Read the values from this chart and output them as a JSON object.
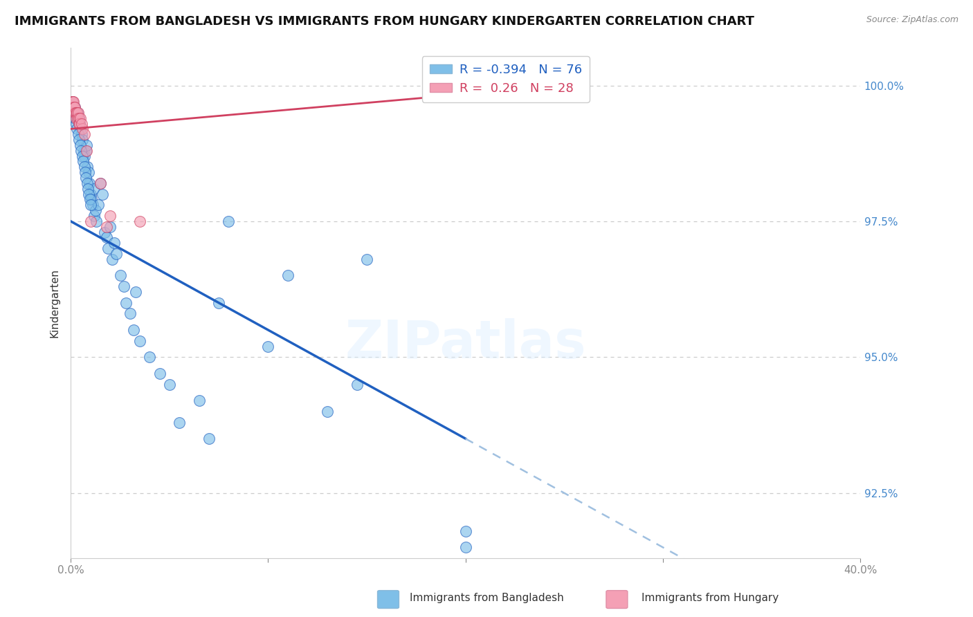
{
  "title": "IMMIGRANTS FROM BANGLADESH VS IMMIGRANTS FROM HUNGARY KINDERGARTEN CORRELATION CHART",
  "source": "Source: ZipAtlas.com",
  "ylabel": "Kindergarten",
  "legend_label_blue": "Immigrants from Bangladesh",
  "legend_label_pink": "Immigrants from Hungary",
  "R_blue": -0.394,
  "N_blue": 76,
  "R_pink": 0.26,
  "N_pink": 28,
  "xmin": 0.0,
  "xmax": 40.0,
  "ymin": 91.3,
  "ymax": 100.7,
  "yticks": [
    92.5,
    95.0,
    97.5,
    100.0
  ],
  "ytick_labels": [
    "92.5%",
    "95.0%",
    "97.5%",
    "100.0%"
  ],
  "xticks": [
    0.0,
    10.0,
    20.0,
    30.0,
    40.0
  ],
  "xtick_labels": [
    "0.0%",
    "",
    "",
    "",
    "40.0%"
  ],
  "color_blue": "#7fbfe8",
  "color_pink": "#f4a0b5",
  "line_blue": "#2060c0",
  "line_pink": "#d04060",
  "line_dashed": "#a0c0e0",
  "watermark": "ZIPatlas",
  "title_fontsize": 13,
  "tick_label_color_right": "#4488cc",
  "blue_trend_x0": 0.0,
  "blue_trend_y0": 97.5,
  "blue_trend_x1": 20.0,
  "blue_trend_y1": 93.5,
  "blue_trend_solid_end": 20.0,
  "blue_trend_dashed_end": 40.0,
  "pink_trend_x0": 0.0,
  "pink_trend_y0": 99.2,
  "pink_trend_x1": 25.0,
  "pink_trend_y1": 100.0,
  "blue_scatter_x": [
    0.15,
    0.2,
    0.25,
    0.3,
    0.35,
    0.4,
    0.45,
    0.5,
    0.55,
    0.6,
    0.65,
    0.7,
    0.75,
    0.8,
    0.85,
    0.9,
    0.95,
    1.0,
    1.05,
    1.1,
    1.15,
    1.2,
    1.25,
    1.3,
    1.4,
    1.5,
    1.6,
    1.7,
    1.8,
    1.9,
    2.0,
    2.1,
    2.2,
    2.3,
    2.5,
    2.7,
    2.8,
    3.0,
    3.2,
    3.3,
    3.5,
    4.0,
    4.5,
    5.0,
    5.5,
    6.5,
    7.0,
    7.5,
    8.0,
    10.0,
    11.0,
    13.0,
    14.5,
    15.0,
    20.0,
    20.0,
    0.1,
    0.12,
    0.18,
    0.22,
    0.28,
    0.32,
    0.38,
    0.42,
    0.48,
    0.52,
    0.58,
    0.62,
    0.68,
    0.72,
    0.78,
    0.82,
    0.88,
    0.92,
    0.98,
    1.02
  ],
  "blue_scatter_y": [
    99.5,
    99.6,
    99.4,
    99.5,
    99.5,
    99.4,
    99.3,
    99.2,
    99.1,
    99.0,
    98.8,
    98.7,
    98.8,
    98.9,
    98.5,
    98.4,
    98.2,
    98.0,
    97.9,
    97.8,
    98.1,
    97.6,
    97.7,
    97.5,
    97.8,
    98.2,
    98.0,
    97.3,
    97.2,
    97.0,
    97.4,
    96.8,
    97.1,
    96.9,
    96.5,
    96.3,
    96.0,
    95.8,
    95.5,
    96.2,
    95.3,
    95.0,
    94.7,
    94.5,
    93.8,
    94.2,
    93.5,
    96.0,
    97.5,
    95.2,
    96.5,
    94.0,
    94.5,
    96.8,
    91.8,
    91.5,
    99.7,
    99.6,
    99.5,
    99.4,
    99.3,
    99.2,
    99.1,
    99.0,
    98.9,
    98.8,
    98.7,
    98.6,
    98.5,
    98.4,
    98.3,
    98.2,
    98.1,
    98.0,
    97.9,
    97.8
  ],
  "pink_scatter_x": [
    0.05,
    0.08,
    0.1,
    0.12,
    0.15,
    0.18,
    0.2,
    0.22,
    0.25,
    0.28,
    0.3,
    0.32,
    0.35,
    0.38,
    0.4,
    0.42,
    0.45,
    0.5,
    0.6,
    0.7,
    0.8,
    1.0,
    1.5,
    1.8,
    2.0,
    3.5,
    25.0,
    0.55
  ],
  "pink_scatter_y": [
    99.6,
    99.7,
    99.7,
    99.6,
    99.7,
    99.6,
    99.5,
    99.6,
    99.5,
    99.4,
    99.5,
    99.5,
    99.4,
    99.5,
    99.4,
    99.3,
    99.3,
    99.4,
    99.2,
    99.1,
    98.8,
    97.5,
    98.2,
    97.4,
    97.6,
    97.5,
    100.0,
    99.3
  ]
}
